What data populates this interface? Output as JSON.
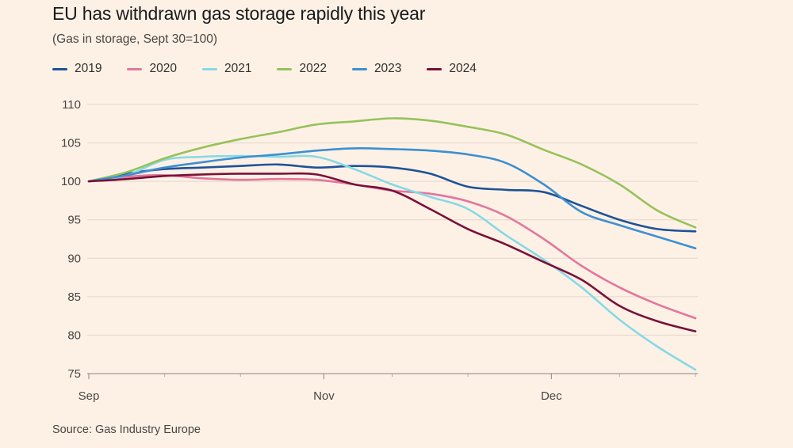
{
  "header": {
    "title": "EU has withdrawn gas storage rapidly this year",
    "subtitle": "(Gas in storage, Sept 30=100)"
  },
  "footer": {
    "source": "Source: Gas Industry Europe"
  },
  "chart_data": {
    "type": "line",
    "title": "EU has withdrawn gas storage rapidly this year",
    "subtitle": "(Gas in storage, Sept 30=100)",
    "xlabel": "",
    "ylabel": "",
    "x_unit": "days since Sept 30",
    "x_ticks": [
      {
        "label": "Sep",
        "x": 0
      },
      {
        "label": "Nov",
        "x": 31
      },
      {
        "label": "Dec",
        "x": 61
      }
    ],
    "xlim": [
      0,
      80
    ],
    "ylim": [
      75,
      110
    ],
    "y_ticks": [
      75,
      80,
      85,
      90,
      95,
      100,
      105,
      110
    ],
    "grid": true,
    "legend_position": "top",
    "series": [
      {
        "name": "2019",
        "color": "#1e5297",
        "x": [
          0,
          5,
          10,
          15,
          20,
          25,
          30,
          35,
          40,
          45,
          50,
          55,
          60,
          65,
          70,
          75,
          80
        ],
        "y": [
          100,
          101,
          101.6,
          101.8,
          102,
          102.2,
          101.8,
          102,
          101.8,
          101,
          99.3,
          98.9,
          98.6,
          96.8,
          95,
          93.8,
          93.5
        ]
      },
      {
        "name": "2020",
        "color": "#e3759d",
        "x": [
          0,
          5,
          10,
          15,
          20,
          25,
          30,
          35,
          40,
          45,
          50,
          55,
          60,
          65,
          70,
          75,
          80
        ],
        "y": [
          100,
          100.6,
          100.8,
          100.4,
          100.2,
          100.3,
          100.2,
          99.6,
          98.8,
          98.4,
          97.4,
          95.5,
          92.5,
          89,
          86.2,
          84,
          82.2
        ]
      },
      {
        "name": "2021",
        "color": "#87d9e6",
        "x": [
          0,
          5,
          10,
          15,
          20,
          25,
          30,
          35,
          40,
          45,
          50,
          55,
          60,
          65,
          70,
          75,
          80
        ],
        "y": [
          100,
          100.8,
          102.8,
          103.2,
          103.3,
          103.2,
          103.2,
          101.6,
          99.6,
          98,
          96.4,
          93,
          89.8,
          86.2,
          82,
          78.5,
          75.5
        ]
      },
      {
        "name": "2022",
        "color": "#96c25a",
        "x": [
          0,
          5,
          10,
          15,
          20,
          25,
          30,
          35,
          40,
          45,
          50,
          55,
          60,
          65,
          70,
          75,
          80
        ],
        "y": [
          100,
          101.2,
          103,
          104.4,
          105.5,
          106.4,
          107.4,
          107.8,
          108.2,
          107.9,
          107.1,
          106.1,
          104.1,
          102.2,
          99.6,
          96.2,
          94
        ]
      },
      {
        "name": "2023",
        "color": "#3d8fd1",
        "x": [
          0,
          5,
          10,
          15,
          20,
          25,
          30,
          35,
          40,
          45,
          50,
          55,
          60,
          65,
          70,
          75,
          80
        ],
        "y": [
          100,
          100.8,
          101.8,
          102.5,
          103.1,
          103.5,
          104,
          104.3,
          104.2,
          104,
          103.5,
          102.4,
          99.6,
          96,
          94.3,
          92.8,
          91.3
        ]
      },
      {
        "name": "2024",
        "color": "#7a1038",
        "x": [
          0,
          5,
          10,
          15,
          20,
          25,
          30,
          35,
          40,
          45,
          50,
          55,
          60,
          65,
          70,
          75,
          80
        ],
        "y": [
          100,
          100.3,
          100.7,
          100.9,
          101,
          101,
          100.9,
          99.6,
          98.8,
          96.4,
          93.8,
          91.8,
          89.5,
          87.2,
          83.8,
          81.8,
          80.5
        ]
      }
    ]
  }
}
